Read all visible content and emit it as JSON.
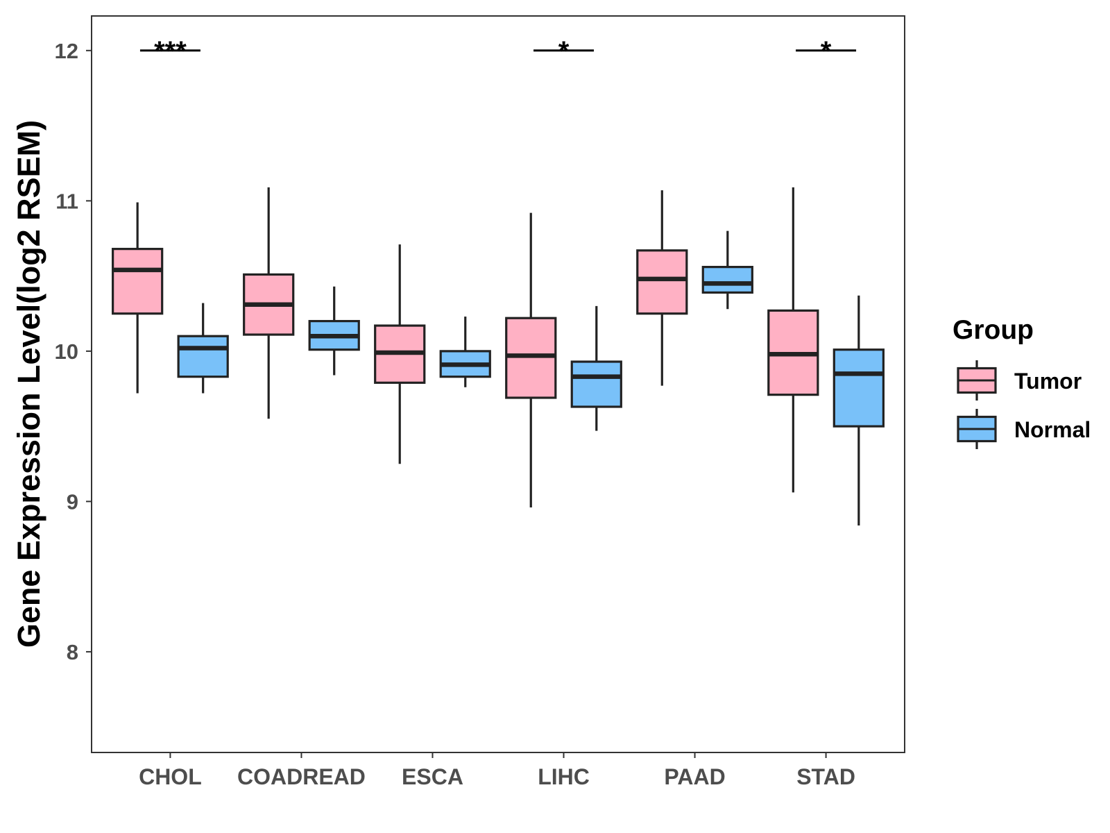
{
  "chart_data": {
    "type": "boxplot",
    "ylabel": "Gene Expression Level(log2 RSEM)",
    "ylim": [
      7.33,
      12.23
    ],
    "yticks": [
      8,
      9,
      10,
      11,
      12
    ],
    "grid": false,
    "categories": [
      "CHOL",
      "COADREAD",
      "ESCA",
      "LIHC",
      "PAAD",
      "STAD"
    ],
    "legend_title": "Group",
    "series": [
      {
        "name": "Tumor",
        "color": "#FFB1C4",
        "boxes": [
          {
            "min": 9.72,
            "q1": 10.25,
            "median": 10.54,
            "q3": 10.68,
            "max": 10.99
          },
          {
            "min": 9.55,
            "q1": 10.11,
            "median": 10.31,
            "q3": 10.51,
            "max": 11.09
          },
          {
            "min": 9.25,
            "q1": 9.79,
            "median": 9.99,
            "q3": 10.17,
            "max": 10.71
          },
          {
            "min": 8.96,
            "q1": 9.69,
            "median": 9.97,
            "q3": 10.22,
            "max": 10.92
          },
          {
            "min": 9.77,
            "q1": 10.25,
            "median": 10.48,
            "q3": 10.67,
            "max": 11.07
          },
          {
            "min": 9.06,
            "q1": 9.71,
            "median": 9.98,
            "q3": 10.27,
            "max": 11.09
          }
        ]
      },
      {
        "name": "Normal",
        "color": "#79C1F9",
        "boxes": [
          {
            "min": 9.72,
            "q1": 9.83,
            "median": 10.02,
            "q3": 10.1,
            "max": 10.32
          },
          {
            "min": 9.84,
            "q1": 10.01,
            "median": 10.1,
            "q3": 10.2,
            "max": 10.43
          },
          {
            "min": 9.76,
            "q1": 9.83,
            "median": 9.91,
            "q3": 10.0,
            "max": 10.23
          },
          {
            "min": 9.47,
            "q1": 9.63,
            "median": 9.83,
            "q3": 9.93,
            "max": 10.3
          },
          {
            "min": 10.28,
            "q1": 10.39,
            "median": 10.45,
            "q3": 10.56,
            "max": 10.8
          },
          {
            "min": 8.84,
            "q1": 9.5,
            "median": 9.85,
            "q3": 10.01,
            "max": 10.37
          }
        ]
      }
    ],
    "significance": [
      {
        "category_index": 0,
        "label": "***",
        "y": 12
      },
      {
        "category_index": 3,
        "label": "*",
        "y": 12
      },
      {
        "category_index": 5,
        "label": "*",
        "y": 12
      }
    ]
  }
}
